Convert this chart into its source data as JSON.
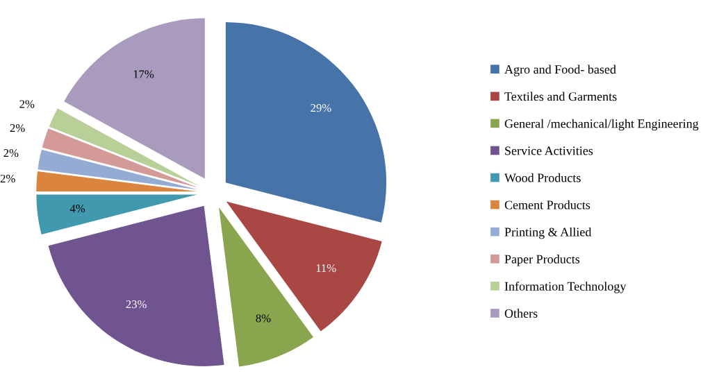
{
  "chart_data": {
    "type": "pie",
    "categories": [
      "Agro and Food- based",
      "Textiles and Garments",
      "General /mechanical/light Engineering",
      "Service Activities",
      "Wood Products",
      "Cement Products",
      "Printing & Allied",
      "Paper Products",
      "Information Technology",
      "Others"
    ],
    "values": [
      29,
      11,
      8,
      23,
      4,
      2,
      2,
      2,
      2,
      17
    ],
    "value_labels": [
      "29%",
      "11%",
      "8%",
      "23%",
      "4%",
      "2%",
      "2%",
      "2%",
      "2%",
      "17%"
    ],
    "colors": [
      "#4673a8",
      "#a94744",
      "#89a54e",
      "#6f5490",
      "#4099ae",
      "#db843d",
      "#94abd3",
      "#d49a98",
      "#b8d098",
      "#a99bbd"
    ],
    "legend": "right"
  }
}
